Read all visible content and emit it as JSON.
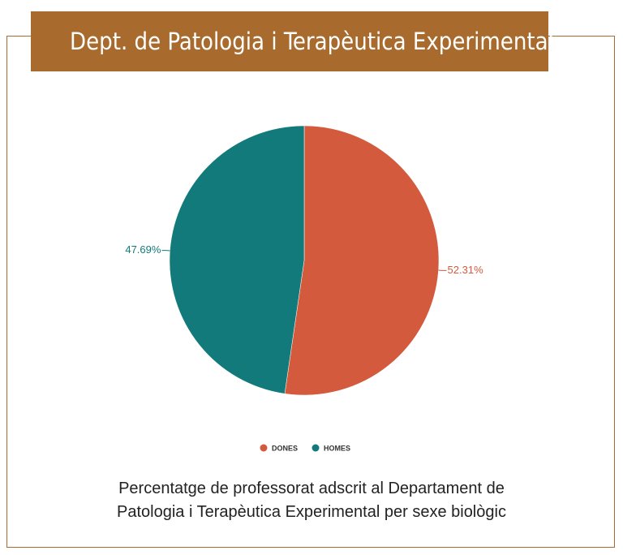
{
  "header": {
    "title": "Dept. de Patologia i Terapèutica Experimental"
  },
  "chart_data": {
    "type": "pie",
    "categories": [
      "DONES",
      "HOMES"
    ],
    "values": [
      52.31,
      47.69
    ],
    "value_labels": [
      "52.31%",
      "47.69%"
    ],
    "colors": [
      "#d35a3d",
      "#137a7b"
    ],
    "legend": "bottom",
    "caption": "Percentatge de professorat adscrit al Departament de Patologia i Terapèutica Experimental per sexe biològic"
  }
}
